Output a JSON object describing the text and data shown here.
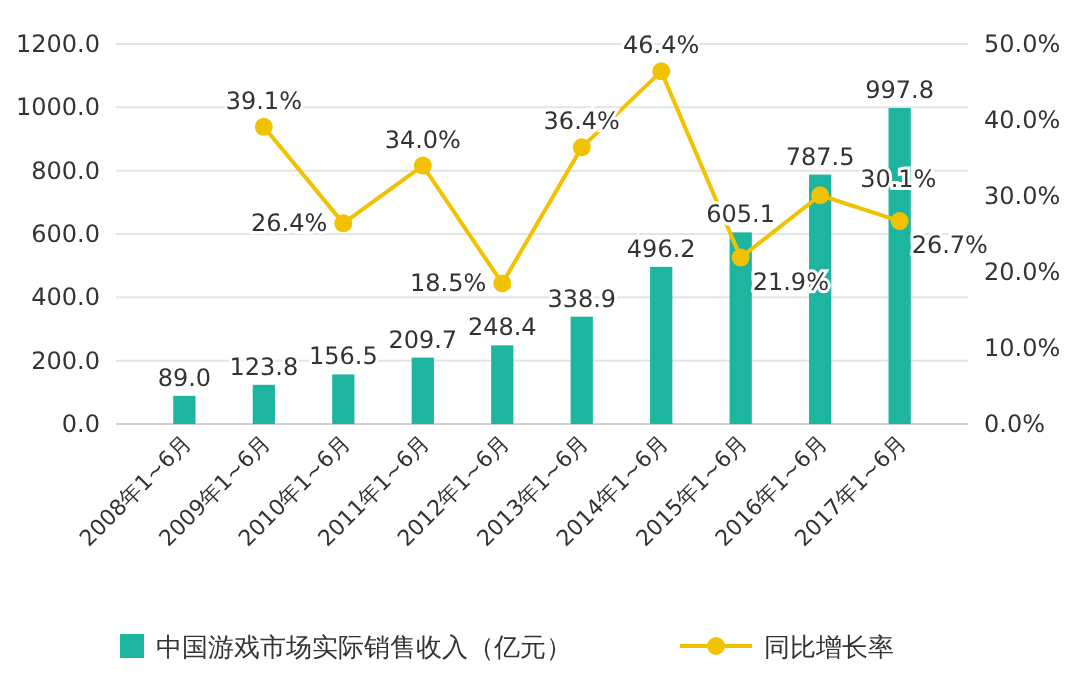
{
  "chart_data": {
    "type": "bar",
    "categories": [
      "2008年1~6月",
      "2009年1~6月",
      "2010年1~6月",
      "2011年1~6月",
      "2012年1~6月",
      "2013年1~6月",
      "2014年1~6月",
      "2015年1~6月",
      "2016年1~6月",
      "2017年1~6月"
    ],
    "series": [
      {
        "name": "中国游戏市场实际销售收入（亿元）",
        "color": "#1db5a0",
        "values": [
          89.0,
          123.8,
          156.5,
          209.7,
          248.4,
          338.9,
          496.2,
          605.1,
          787.5,
          997.8
        ],
        "value_labels": [
          "89.0",
          "123.8",
          "156.5",
          "209.7",
          "248.4",
          "338.9",
          "496.2",
          "605.1",
          "787.5",
          "997.8"
        ]
      },
      {
        "name": "同比增长率",
        "type": "line",
        "axis": "y2",
        "color": "#f2c200",
        "marker": "circle",
        "values": [
          null,
          39.1,
          26.4,
          34.0,
          18.5,
          36.4,
          46.4,
          21.9,
          30.1,
          26.7
        ],
        "value_labels": [
          null,
          "39.1%",
          "26.4%",
          "34.0%",
          "18.5%",
          "36.4%",
          "46.4%",
          "21.9%",
          "30.1%",
          "26.7%"
        ]
      }
    ],
    "ylim": [
      0,
      1200
    ],
    "yticks": [
      {
        "value": 0,
        "label": "0.0"
      },
      {
        "value": 200,
        "label": "200.0"
      },
      {
        "value": 400,
        "label": "400.0"
      },
      {
        "value": 600,
        "label": "600.0"
      },
      {
        "value": 800,
        "label": "800.0"
      },
      {
        "value": 1000,
        "label": "1000.0"
      },
      {
        "value": 1200,
        "label": "1200.0"
      }
    ],
    "y2lim": [
      0,
      50
    ],
    "y2ticks": [
      {
        "value": 0,
        "label": "0.0%"
      },
      {
        "value": 10,
        "label": "10.0%"
      },
      {
        "value": 20,
        "label": "20.0%"
      },
      {
        "value": 30,
        "label": "30.0%"
      },
      {
        "value": 40,
        "label": "40.0%"
      },
      {
        "value": 50,
        "label": "50.0%"
      }
    ],
    "grid": "y",
    "legend": "bottom"
  }
}
